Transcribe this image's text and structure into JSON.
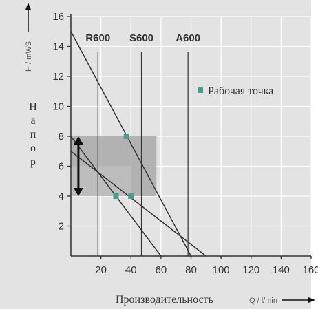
{
  "chart_data": {
    "type": "line",
    "x_unit": "Q / l/min",
    "y_unit": "H / mWS",
    "xlabel": "Производительность",
    "ylabel": "Напор",
    "xlim": [
      0,
      160
    ],
    "ylim": [
      0,
      16
    ],
    "x_ticks": [
      "20",
      "40",
      "60",
      "80",
      "100",
      "120",
      "140",
      "160"
    ],
    "y_ticks": [
      "2",
      "4",
      "6",
      "8",
      "10",
      "12",
      "14",
      "16"
    ],
    "grid": true,
    "legend_position": "right",
    "legend_label": "Рабочая точка",
    "colors": {
      "line": "#333333",
      "grid": "#ffffff",
      "band": "#a9a9a9",
      "band_light": "#c7c7c7",
      "marker": "#4f9a8c",
      "background": "#e3e3e3"
    },
    "series": [
      {
        "name": "R600",
        "x": [
          0,
          60
        ],
        "y": [
          8,
          0
        ]
      },
      {
        "name": "S600",
        "x": [
          0,
          80
        ],
        "y": [
          15,
          0
        ]
      },
      {
        "name": "A600",
        "x": [
          0,
          90
        ],
        "y": [
          7,
          0
        ]
      }
    ],
    "model_labels": [
      {
        "text": "R600",
        "x": 18
      },
      {
        "text": "S600",
        "x": 47
      },
      {
        "text": "A600",
        "x": 78
      }
    ],
    "operating_points": [
      {
        "x": 37,
        "y": 8
      },
      {
        "x": 30,
        "y": 4
      },
      {
        "x": 40,
        "y": 4
      }
    ],
    "working_range": {
      "x": [
        0,
        57
      ],
      "y": [
        4,
        8
      ],
      "inner_x": [
        0,
        40
      ]
    },
    "arrow_range": {
      "x": 5,
      "y": [
        4,
        8
      ]
    }
  }
}
